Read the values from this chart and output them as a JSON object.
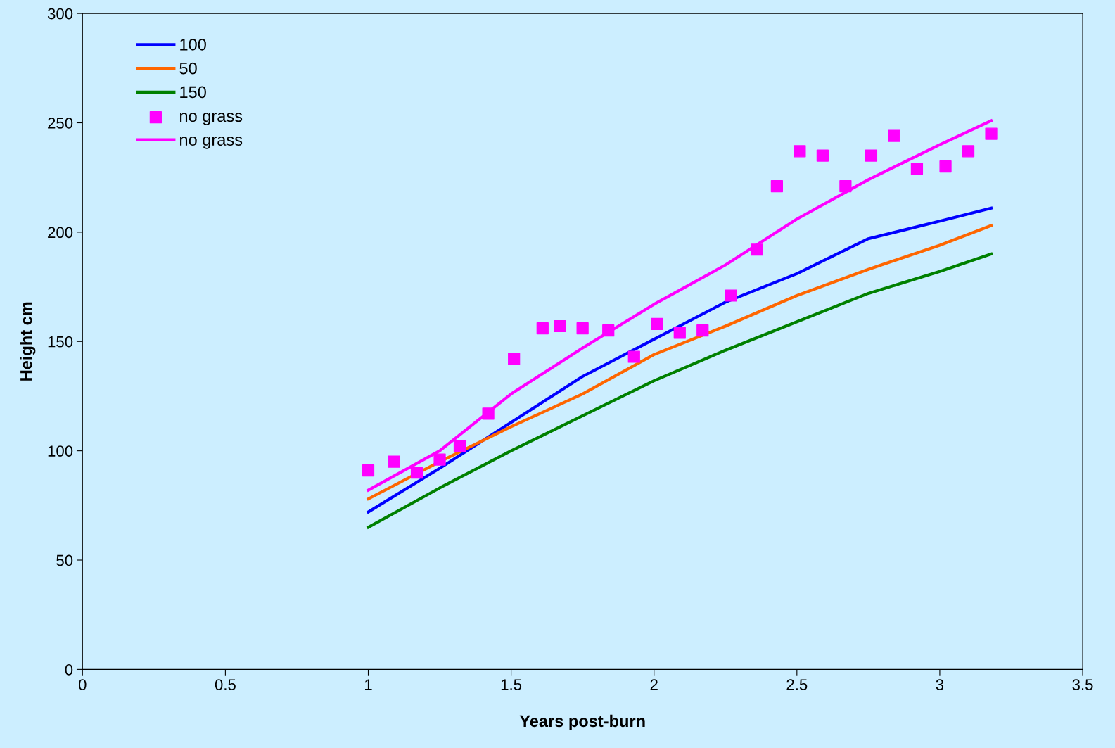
{
  "chart_data": {
    "type": "line",
    "xlabel": "Years post-burn",
    "ylabel": "Height cm",
    "xlim": [
      0,
      3.5
    ],
    "xticks": [
      0,
      0.5,
      1,
      1.5,
      2,
      2.5,
      3,
      3.5
    ],
    "ylim": [
      0,
      300
    ],
    "yticks": [
      0,
      50,
      100,
      150,
      200,
      250,
      300
    ],
    "grid": false,
    "legend": "top left",
    "marker": "none",
    "line_style": "solid",
    "series": [
      {
        "name": "100",
        "color": "#0000ff",
        "x": [
          1,
          1.25,
          1.5,
          1.75,
          2,
          2.25,
          2.5,
          2.75,
          3,
          3.18
        ],
        "values": [
          72,
          92,
          113,
          134,
          151,
          168,
          181,
          197,
          205,
          211
        ]
      },
      {
        "name": "50",
        "color": "#ff6600",
        "x": [
          1,
          1.25,
          1.5,
          1.75,
          2,
          2.25,
          2.5,
          2.75,
          3,
          3.18
        ],
        "values": [
          78,
          95,
          111,
          126,
          144,
          157,
          171,
          183,
          194,
          203
        ]
      },
      {
        "name": "150",
        "color": "#008000",
        "x": [
          1,
          1.25,
          1.5,
          1.75,
          2,
          2.25,
          2.5,
          2.75,
          3,
          3.18
        ],
        "values": [
          65,
          83,
          100,
          116,
          132,
          146,
          159,
          172,
          182,
          190
        ]
      },
      {
        "name": "no grass",
        "color": "#ff00ff",
        "type": "scatter",
        "marker": "square",
        "x": [
          1.0,
          1.09,
          1.17,
          1.25,
          1.32,
          1.42,
          1.51,
          1.61,
          1.67,
          1.75,
          1.84,
          1.93,
          2.01,
          2.09,
          2.17,
          2.27,
          2.36,
          2.43,
          2.51,
          2.59,
          2.67,
          2.76,
          2.84,
          2.92,
          3.02,
          3.1,
          3.18
        ],
        "values": [
          91,
          95,
          90,
          96,
          102,
          117,
          142,
          156,
          157,
          156,
          155,
          143,
          158,
          154,
          155,
          171,
          192,
          221,
          237,
          235,
          221,
          235,
          244,
          229,
          230,
          237,
          245
        ]
      },
      {
        "name": "no grass",
        "color": "#ff00ff",
        "x": [
          1,
          1.25,
          1.5,
          1.75,
          2,
          2.25,
          2.5,
          2.75,
          3,
          3.18
        ],
        "values": [
          82,
          100,
          126,
          147,
          167,
          185,
          206,
          224,
          240,
          251
        ]
      }
    ]
  }
}
